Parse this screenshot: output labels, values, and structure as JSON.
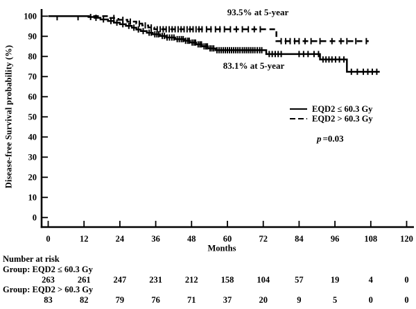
{
  "figure": {
    "background": "#ffffff",
    "ink_color": "#000000"
  },
  "chart_data": {
    "type": "line",
    "subtype": "kaplan-meier-step",
    "title": "",
    "xlabel": "Months",
    "ylabel": "Disease-free Survival probability (%)",
    "xlim": [
      0,
      120
    ],
    "ylim": [
      0,
      100
    ],
    "x_ticks": [
      0,
      12,
      24,
      36,
      48,
      60,
      72,
      84,
      96,
      108,
      120
    ],
    "y_ticks": [
      0,
      10,
      20,
      30,
      40,
      50,
      60,
      70,
      80,
      90,
      100
    ],
    "grid": false,
    "legend_position": "inside-right-center",
    "series": [
      {
        "name": "EQD2 ≤ 60.3 Gy",
        "line_style": "solid",
        "color": "#000000",
        "start": [
          0,
          100
        ],
        "steps": [
          [
            13.5,
            99.6
          ],
          [
            15.5,
            99.2
          ],
          [
            17.5,
            98.4
          ],
          [
            20,
            97.6
          ],
          [
            22,
            96.8
          ],
          [
            24,
            96.0
          ],
          [
            26,
            95.2
          ],
          [
            28,
            94.3
          ],
          [
            29.5,
            93.4
          ],
          [
            31,
            92.6
          ],
          [
            33,
            91.8
          ],
          [
            35,
            91.0
          ],
          [
            37.5,
            90.2
          ],
          [
            39.5,
            89.4
          ],
          [
            42.5,
            88.6
          ],
          [
            45.5,
            87.8
          ],
          [
            47.5,
            86.9
          ],
          [
            49.5,
            86.0
          ],
          [
            51.5,
            85.0
          ],
          [
            53.5,
            84.0
          ],
          [
            56,
            83.1
          ],
          [
            73,
            81.2
          ],
          [
            91,
            78.5
          ],
          [
            100,
            72.4
          ]
        ],
        "end_month": 111,
        "five_year_value": 83.1,
        "censor_months": [
          3,
          10,
          14.2,
          16,
          18.5,
          21,
          23,
          25,
          27,
          28.7,
          30.2,
          31.8,
          33.8,
          34.5,
          35.7,
          36.4,
          37,
          38.2,
          38.9,
          39.8,
          40.6,
          41.4,
          42.1,
          43.2,
          43.9,
          44.6,
          45.2,
          46,
          46.7,
          47.2,
          48.2,
          48.8,
          49.3,
          50.2,
          50.8,
          51.3,
          52.2,
          52.8,
          53.3,
          54.2,
          54.8,
          55.4,
          56.5,
          57.2,
          57.9,
          58.6,
          59.3,
          60,
          60.7,
          61.4,
          62.1,
          62.8,
          63.5,
          64.2,
          65,
          65.7,
          66.4,
          67.1,
          67.8,
          68.5,
          69.2,
          70,
          70.8,
          71.5,
          74,
          75,
          76,
          77,
          78,
          84,
          85.5,
          87,
          89,
          90.5,
          92,
          93,
          94,
          95,
          96.2,
          97.5,
          99,
          101.5,
          103.5,
          105.5,
          107,
          108.5,
          110
        ]
      },
      {
        "name": "EQD2 > 60.3 Gy",
        "line_style": "dashed",
        "color": "#000000",
        "start": [
          0,
          100
        ],
        "steps": [
          [
            20.5,
            99.1
          ],
          [
            23.5,
            98.2
          ],
          [
            26.5,
            97.3
          ],
          [
            29.5,
            96.3
          ],
          [
            31.5,
            95.4
          ],
          [
            33.5,
            94.4
          ],
          [
            35.5,
            93.5
          ],
          [
            76.4,
            87.6
          ]
        ],
        "end_month": 107.3,
        "five_year_value": 93.5,
        "censor_months": [
          22,
          25,
          27.5,
          30.5,
          32.5,
          34.5,
          36.5,
          37.5,
          38.5,
          39.5,
          40.5,
          41.5,
          42.5,
          43.5,
          44.5,
          45.5,
          46.5,
          47.5,
          48.5,
          49.5,
          50.5,
          51.5,
          53,
          54.5,
          56,
          57.5,
          59,
          61,
          63,
          65,
          67,
          69,
          71,
          78,
          79.5,
          81,
          82.5,
          84,
          86,
          88,
          91,
          95,
          98,
          100,
          103,
          106.5
        ]
      }
    ],
    "annotations": [
      {
        "text": "93.5% at 5-year"
      },
      {
        "text": "83.1% at 5-year"
      }
    ],
    "p_value_text": "p=0.03"
  },
  "legend": {
    "items": [
      {
        "label": "EQD2 ≤ 60.3 Gy",
        "style": "solid"
      },
      {
        "label": "EQD2 > 60.3 Gy",
        "style": "dashed"
      }
    ],
    "p_italic": "p",
    "p_rest": "=0.03"
  },
  "risk_table": {
    "heading": "Number at risk",
    "groups": [
      {
        "label": "Group: EQD2 ≤ 60.3 Gy",
        "counts": [
          263,
          261,
          247,
          231,
          212,
          158,
          104,
          57,
          19,
          4,
          0
        ]
      },
      {
        "label": "Group: EQD2 > 60.3 Gy",
        "counts": [
          83,
          82,
          79,
          76,
          71,
          37,
          20,
          9,
          5,
          0,
          0
        ]
      }
    ]
  }
}
